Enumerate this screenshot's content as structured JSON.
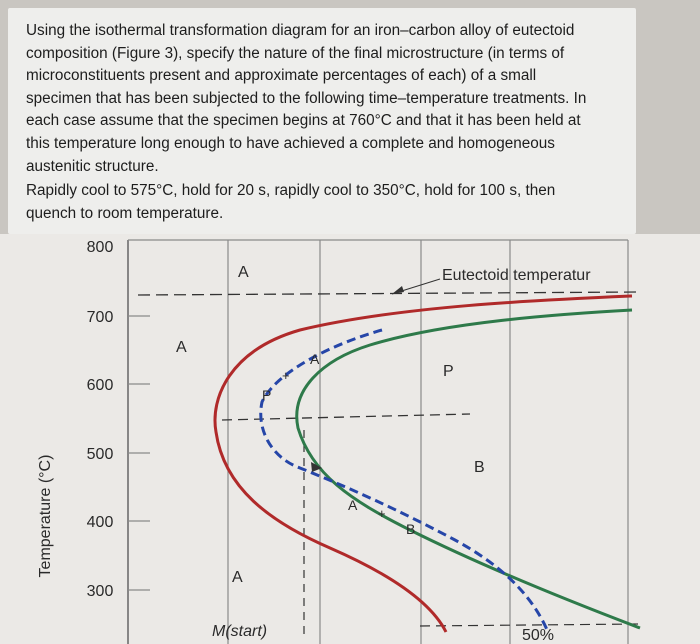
{
  "problem": {
    "intro_lines": [
      "Using the isothermal transformation diagram for an iron–carbon alloy of eutectoid",
      "composition (Figure 3), specify the nature of the final microstructure (in terms of",
      "microconstituents present and approximate percentages of each) of a small",
      "specimen that has been subjected to the following time–temperature treatments. In",
      "each case assume that the specimen begins at 760°C and that it has been held at",
      "this temperature long enough to have achieved a complete and homogeneous",
      "austenitic structure."
    ],
    "treatment_lines": [
      "Rapidly cool to 575°C, hold for 20 s, rapidly cool to 350°C, hold for 100 s, then",
      "quench to room temperature."
    ]
  },
  "diagram": {
    "y_axis_label": "Temperature (°C)",
    "y_ticks": [
      "800",
      "700",
      "600",
      "500",
      "400",
      "300"
    ],
    "eutectoid_label": "Eutectoid temperatur",
    "region_labels": {
      "austenite_top": "A",
      "austenite_left": "A",
      "austenite_bottom": "A",
      "pearlite_start_marker": "P",
      "pearlite": "P",
      "austenite_path_label": "A",
      "austenite_plus_bainite": "A",
      "plus_sign_lower": "+",
      "bainite_marker": "B",
      "bainite": "B",
      "plus_sign_upper": "+"
    },
    "martensite_start_label": "M(start)",
    "fifty_percent_label": "50%",
    "colors": {
      "start_curve": "#b02a2a",
      "finish_curve": "#2e7a4a",
      "fifty_percent_curve": "#2646a8",
      "grid": "#8a8a8a"
    }
  }
}
